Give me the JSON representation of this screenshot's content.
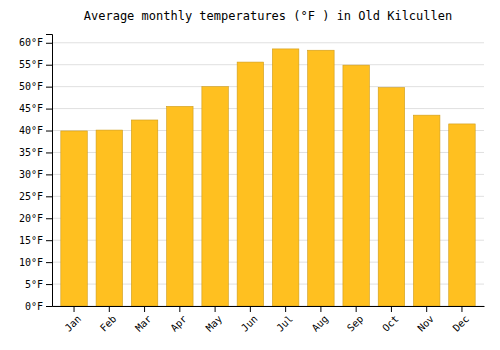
{
  "chart_data": {
    "type": "bar",
    "title": "Average monthly temperatures (°F ) in Old Kilcullen",
    "categories": [
      "Jan",
      "Feb",
      "Mar",
      "Apr",
      "May",
      "Jun",
      "Jul",
      "Aug",
      "Sep",
      "Oct",
      "Nov",
      "Dec"
    ],
    "values": [
      39.9,
      40.1,
      42.4,
      45.5,
      50.0,
      55.6,
      58.6,
      58.3,
      54.9,
      49.8,
      43.5,
      41.5
    ],
    "color": "#FFC020",
    "ylim": [
      0,
      62
    ],
    "yticks": [
      {
        "value": 0,
        "label": "0°F"
      },
      {
        "value": 5,
        "label": "5°F"
      },
      {
        "value": 10,
        "label": "10°F"
      },
      {
        "value": 15,
        "label": "15°F"
      },
      {
        "value": 20,
        "label": "20°F"
      },
      {
        "value": 25,
        "label": "25°F"
      },
      {
        "value": 30,
        "label": "30°F"
      },
      {
        "value": 35,
        "label": "35°F"
      },
      {
        "value": 40,
        "label": "40°F"
      },
      {
        "value": 45,
        "label": "45°F"
      },
      {
        "value": 50,
        "label": "50°F"
      },
      {
        "value": 55,
        "label": "55°F"
      },
      {
        "value": 60,
        "label": "60°F"
      }
    ],
    "grid": true
  }
}
